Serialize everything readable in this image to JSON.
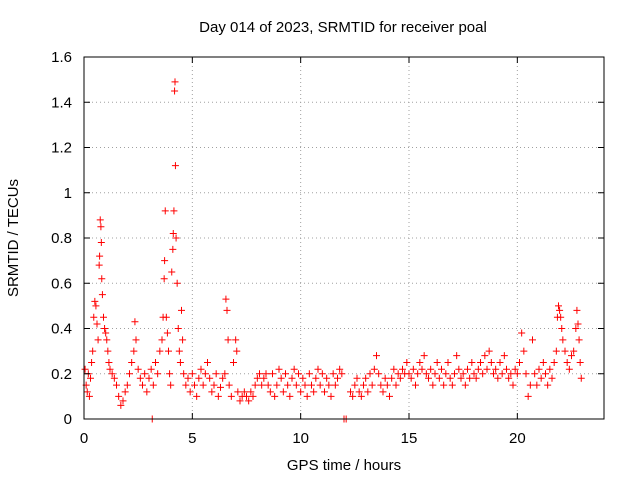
{
  "chart_data": {
    "type": "scatter",
    "title": "Day 014 of 2023, SRMTID for receiver poal",
    "xlabel": "GPS time / hours",
    "ylabel": "SRMTID / TECUs",
    "xlim": [
      0,
      24
    ],
    "ylim": [
      0,
      1.6
    ],
    "xticks": [
      0,
      5,
      10,
      15,
      20
    ],
    "xtick_labels": [
      "0",
      "5",
      "10",
      "15",
      "20"
    ],
    "yticks": [
      0,
      0.2,
      0.4,
      0.6,
      0.8,
      1.0,
      1.2,
      1.4,
      1.6
    ],
    "ytick_labels": [
      "0",
      "0.2",
      "0.4",
      "0.6",
      "0.8",
      "1",
      "1.2",
      "1.4",
      "1.6"
    ],
    "grid": true,
    "marker": "+",
    "color": "#ff0000",
    "series": [
      {
        "name": "SRMTID",
        "points": [
          [
            0.05,
            0.22
          ],
          [
            0.1,
            0.15
          ],
          [
            0.15,
            0.12
          ],
          [
            0.2,
            0.2
          ],
          [
            0.25,
            0.1
          ],
          [
            0.3,
            0.18
          ],
          [
            0.35,
            0.25
          ],
          [
            0.4,
            0.3
          ],
          [
            0.45,
            0.45
          ],
          [
            0.5,
            0.52
          ],
          [
            0.55,
            0.5
          ],
          [
            0.6,
            0.42
          ],
          [
            0.65,
            0.35
          ],
          [
            0.7,
            0.68
          ],
          [
            0.72,
            0.72
          ],
          [
            0.75,
            0.88
          ],
          [
            0.78,
            0.85
          ],
          [
            0.8,
            0.78
          ],
          [
            0.82,
            0.62
          ],
          [
            0.85,
            0.55
          ],
          [
            0.9,
            0.45
          ],
          [
            0.95,
            0.4
          ],
          [
            1.0,
            0.38
          ],
          [
            1.05,
            0.35
          ],
          [
            1.1,
            0.3
          ],
          [
            1.15,
            0.25
          ],
          [
            1.2,
            0.22
          ],
          [
            1.3,
            0.2
          ],
          [
            1.4,
            0.18
          ],
          [
            1.5,
            0.15
          ],
          [
            1.6,
            0.1
          ],
          [
            1.7,
            0.06
          ],
          [
            1.8,
            0.08
          ],
          [
            1.9,
            0.12
          ],
          [
            2.0,
            0.15
          ],
          [
            2.1,
            0.2
          ],
          [
            2.2,
            0.25
          ],
          [
            2.3,
            0.3
          ],
          [
            2.35,
            0.43
          ],
          [
            2.4,
            0.35
          ],
          [
            2.5,
            0.22
          ],
          [
            2.6,
            0.18
          ],
          [
            2.7,
            0.15
          ],
          [
            2.8,
            0.2
          ],
          [
            2.9,
            0.12
          ],
          [
            3.0,
            0.18
          ],
          [
            3.1,
            0.22
          ],
          [
            3.2,
            0.15
          ],
          [
            3.3,
            0.25
          ],
          [
            3.4,
            0.2
          ],
          [
            3.5,
            0.3
          ],
          [
            3.6,
            0.35
          ],
          [
            3.65,
            0.45
          ],
          [
            3.7,
            0.62
          ],
          [
            3.72,
            0.7
          ],
          [
            3.75,
            0.92
          ],
          [
            3.8,
            0.45
          ],
          [
            3.85,
            0.38
          ],
          [
            3.9,
            0.3
          ],
          [
            3.95,
            0.2
          ],
          [
            4.0,
            0.15
          ],
          [
            4.05,
            0.65
          ],
          [
            4.1,
            0.75
          ],
          [
            4.12,
            0.82
          ],
          [
            4.15,
            0.92
          ],
          [
            4.18,
            1.45
          ],
          [
            4.2,
            1.49
          ],
          [
            4.22,
            1.12
          ],
          [
            4.25,
            0.8
          ],
          [
            4.3,
            0.6
          ],
          [
            4.35,
            0.4
          ],
          [
            4.4,
            0.3
          ],
          [
            4.45,
            0.25
          ],
          [
            4.5,
            0.48
          ],
          [
            4.55,
            0.35
          ],
          [
            4.6,
            0.2
          ],
          [
            4.7,
            0.15
          ],
          [
            4.8,
            0.18
          ],
          [
            4.9,
            0.12
          ],
          [
            5.0,
            0.2
          ],
          [
            5.1,
            0.15
          ],
          [
            5.2,
            0.1
          ],
          [
            5.3,
            0.18
          ],
          [
            5.4,
            0.22
          ],
          [
            5.5,
            0.15
          ],
          [
            5.6,
            0.2
          ],
          [
            5.7,
            0.25
          ],
          [
            5.8,
            0.18
          ],
          [
            5.9,
            0.12
          ],
          [
            6.0,
            0.15
          ],
          [
            6.1,
            0.2
          ],
          [
            6.2,
            0.1
          ],
          [
            6.3,
            0.14
          ],
          [
            6.4,
            0.18
          ],
          [
            6.5,
            0.2
          ],
          [
            6.55,
            0.53
          ],
          [
            6.6,
            0.48
          ],
          [
            6.65,
            0.35
          ],
          [
            6.7,
            0.15
          ],
          [
            6.8,
            0.1
          ],
          [
            6.9,
            0.25
          ],
          [
            7.0,
            0.35
          ],
          [
            7.05,
            0.3
          ],
          [
            7.1,
            0.12
          ],
          [
            7.2,
            0.08
          ],
          [
            7.3,
            0.1
          ],
          [
            7.4,
            0.12
          ],
          [
            7.5,
            0.1
          ],
          [
            7.6,
            0.08
          ],
          [
            7.7,
            0.12
          ],
          [
            7.8,
            0.1
          ],
          [
            7.9,
            0.15
          ],
          [
            8.0,
            0.18
          ],
          [
            8.1,
            0.2
          ],
          [
            8.2,
            0.15
          ],
          [
            8.3,
            0.18
          ],
          [
            8.4,
            0.2
          ],
          [
            8.5,
            0.15
          ],
          [
            8.6,
            0.12
          ],
          [
            8.7,
            0.2
          ],
          [
            8.8,
            0.1
          ],
          [
            8.9,
            0.15
          ],
          [
            9.0,
            0.22
          ],
          [
            9.1,
            0.18
          ],
          [
            9.2,
            0.12
          ],
          [
            9.3,
            0.2
          ],
          [
            9.4,
            0.15
          ],
          [
            9.5,
            0.1
          ],
          [
            9.6,
            0.18
          ],
          [
            9.7,
            0.22
          ],
          [
            9.8,
            0.15
          ],
          [
            9.9,
            0.2
          ],
          [
            10.0,
            0.12
          ],
          [
            10.1,
            0.18
          ],
          [
            10.2,
            0.15
          ],
          [
            10.3,
            0.1
          ],
          [
            10.4,
            0.2
          ],
          [
            10.5,
            0.15
          ],
          [
            10.6,
            0.12
          ],
          [
            10.7,
            0.18
          ],
          [
            10.8,
            0.22
          ],
          [
            10.9,
            0.15
          ],
          [
            11.0,
            0.2
          ],
          [
            11.1,
            0.12
          ],
          [
            11.2,
            0.18
          ],
          [
            11.3,
            0.15
          ],
          [
            11.4,
            0.1
          ],
          [
            11.5,
            0.2
          ],
          [
            11.6,
            0.15
          ],
          [
            11.7,
            0.18
          ],
          [
            11.8,
            0.22
          ],
          [
            11.9,
            0.2
          ],
          [
            12.0,
            0.0
          ],
          [
            12.1,
            0.0
          ],
          [
            12.3,
            0.12
          ],
          [
            12.4,
            0.1
          ],
          [
            12.5,
            0.15
          ],
          [
            12.6,
            0.18
          ],
          [
            12.7,
            0.12
          ],
          [
            12.8,
            0.1
          ],
          [
            12.9,
            0.15
          ],
          [
            13.0,
            0.18
          ],
          [
            13.1,
            0.12
          ],
          [
            13.2,
            0.2
          ],
          [
            13.3,
            0.15
          ],
          [
            13.4,
            0.22
          ],
          [
            13.5,
            0.28
          ],
          [
            13.6,
            0.2
          ],
          [
            13.7,
            0.15
          ],
          [
            13.8,
            0.12
          ],
          [
            13.9,
            0.18
          ],
          [
            14.0,
            0.15
          ],
          [
            14.1,
            0.1
          ],
          [
            14.2,
            0.18
          ],
          [
            14.3,
            0.22
          ],
          [
            14.4,
            0.15
          ],
          [
            14.5,
            0.2
          ],
          [
            14.6,
            0.18
          ],
          [
            14.7,
            0.22
          ],
          [
            14.8,
            0.2
          ],
          [
            14.9,
            0.25
          ],
          [
            15.0,
            0.2
          ],
          [
            15.1,
            0.18
          ],
          [
            15.2,
            0.22
          ],
          [
            15.3,
            0.15
          ],
          [
            15.4,
            0.2
          ],
          [
            15.5,
            0.25
          ],
          [
            15.6,
            0.22
          ],
          [
            15.7,
            0.28
          ],
          [
            15.8,
            0.2
          ],
          [
            15.9,
            0.18
          ],
          [
            16.0,
            0.22
          ],
          [
            16.1,
            0.15
          ],
          [
            16.2,
            0.2
          ],
          [
            16.3,
            0.25
          ],
          [
            16.4,
            0.18
          ],
          [
            16.5,
            0.22
          ],
          [
            16.6,
            0.15
          ],
          [
            16.7,
            0.2
          ],
          [
            16.8,
            0.25
          ],
          [
            16.9,
            0.18
          ],
          [
            17.0,
            0.15
          ],
          [
            17.1,
            0.2
          ],
          [
            17.2,
            0.28
          ],
          [
            17.3,
            0.22
          ],
          [
            17.4,
            0.18
          ],
          [
            17.5,
            0.2
          ],
          [
            17.6,
            0.15
          ],
          [
            17.7,
            0.22
          ],
          [
            17.8,
            0.18
          ],
          [
            17.9,
            0.25
          ],
          [
            18.0,
            0.2
          ],
          [
            18.1,
            0.18
          ],
          [
            18.2,
            0.22
          ],
          [
            18.3,
            0.25
          ],
          [
            18.4,
            0.2
          ],
          [
            18.5,
            0.28
          ],
          [
            18.6,
            0.22
          ],
          [
            18.7,
            0.3
          ],
          [
            18.8,
            0.25
          ],
          [
            18.9,
            0.2
          ],
          [
            19.0,
            0.22
          ],
          [
            19.1,
            0.18
          ],
          [
            19.2,
            0.25
          ],
          [
            19.3,
            0.2
          ],
          [
            19.4,
            0.28
          ],
          [
            19.5,
            0.22
          ],
          [
            19.6,
            0.18
          ],
          [
            19.7,
            0.2
          ],
          [
            19.8,
            0.15
          ],
          [
            19.9,
            0.22
          ],
          [
            20.0,
            0.2
          ],
          [
            20.1,
            0.25
          ],
          [
            20.2,
            0.38
          ],
          [
            20.3,
            0.3
          ],
          [
            20.4,
            0.2
          ],
          [
            20.5,
            0.1
          ],
          [
            20.6,
            0.15
          ],
          [
            20.7,
            0.35
          ],
          [
            20.8,
            0.2
          ],
          [
            20.9,
            0.15
          ],
          [
            21.0,
            0.22
          ],
          [
            21.1,
            0.18
          ],
          [
            21.2,
            0.25
          ],
          [
            21.3,
            0.2
          ],
          [
            21.4,
            0.15
          ],
          [
            21.5,
            0.22
          ],
          [
            21.6,
            0.18
          ],
          [
            21.7,
            0.25
          ],
          [
            21.8,
            0.3
          ],
          [
            21.85,
            0.45
          ],
          [
            21.9,
            0.5
          ],
          [
            21.95,
            0.48
          ],
          [
            22.0,
            0.45
          ],
          [
            22.05,
            0.4
          ],
          [
            22.1,
            0.35
          ],
          [
            22.2,
            0.3
          ],
          [
            22.3,
            0.25
          ],
          [
            22.4,
            0.22
          ],
          [
            22.5,
            0.28
          ],
          [
            22.6,
            0.3
          ],
          [
            22.7,
            0.4
          ],
          [
            22.75,
            0.48
          ],
          [
            22.8,
            0.42
          ],
          [
            22.85,
            0.35
          ],
          [
            22.9,
            0.25
          ],
          [
            22.95,
            0.18
          ],
          [
            3.15,
            0.0
          ]
        ]
      }
    ]
  }
}
